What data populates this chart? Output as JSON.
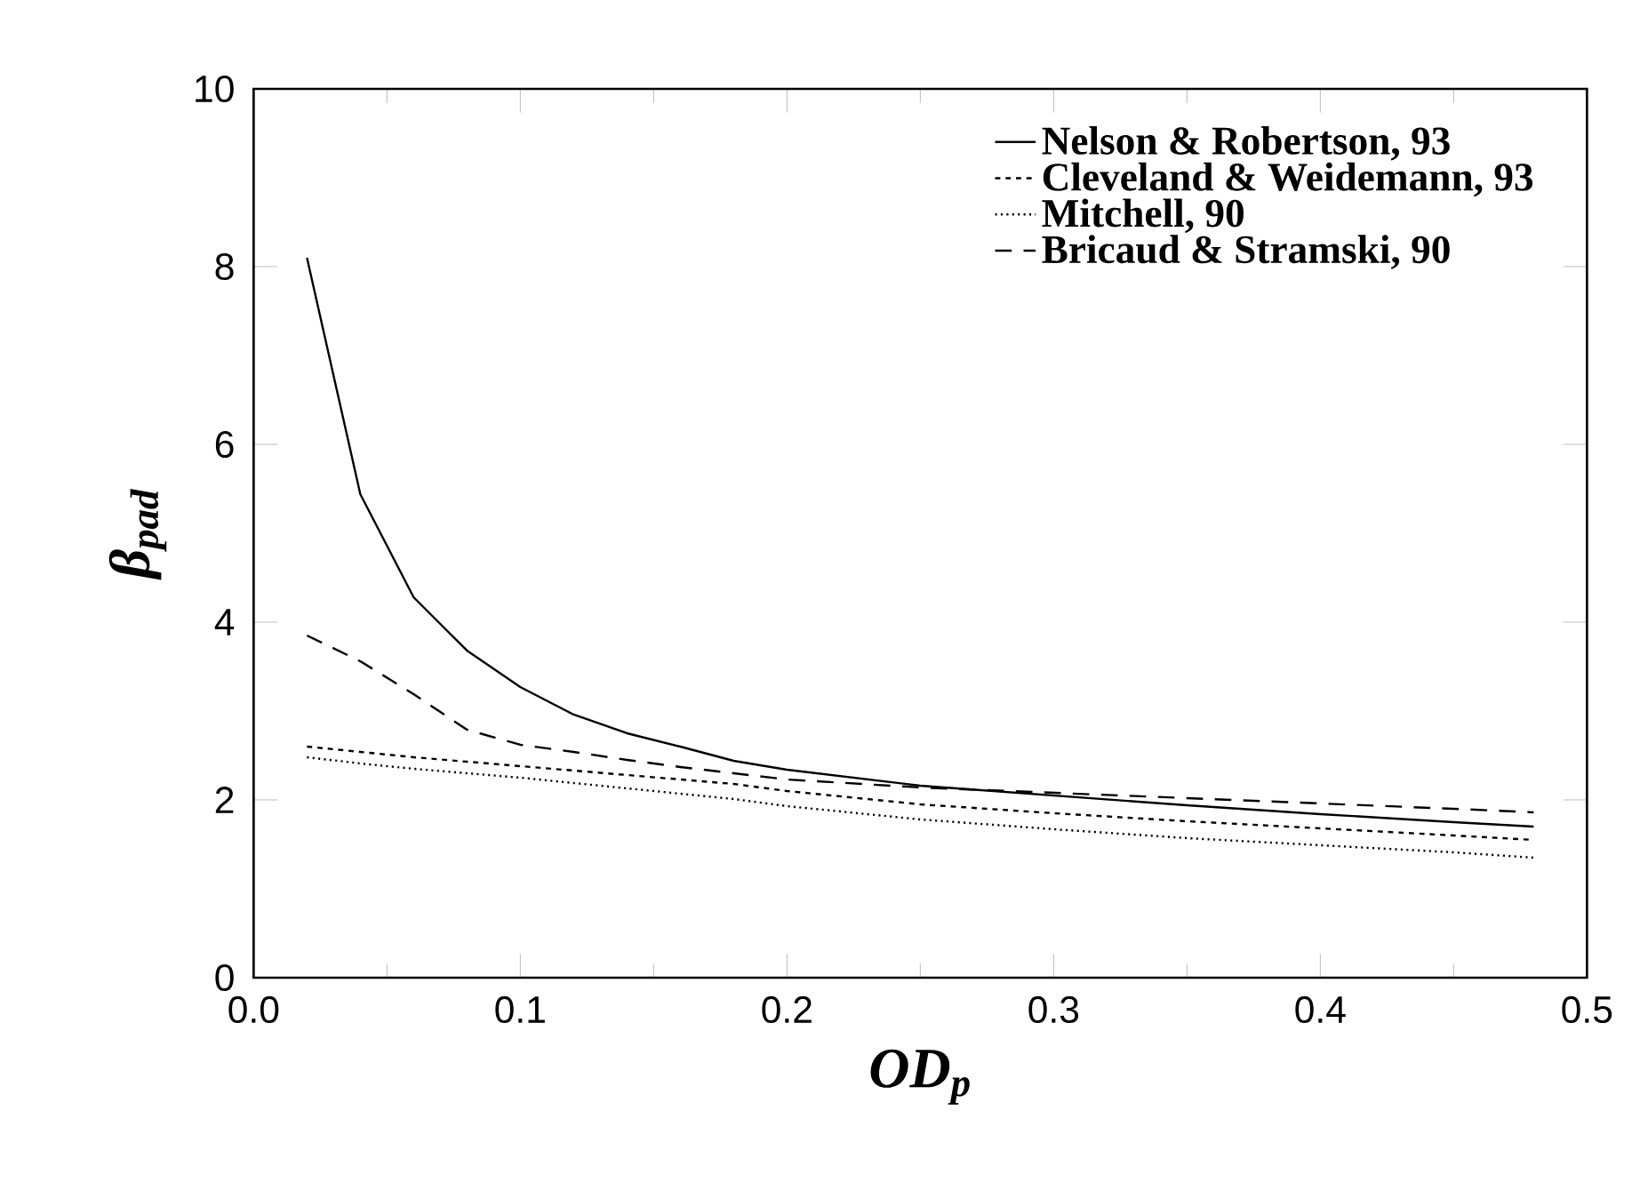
{
  "chart_data": {
    "type": "line",
    "xlabel": "OD$_{p}$",
    "ylabel": "β$_{pad}$",
    "xlim": [
      0.0,
      0.5
    ],
    "ylim": [
      0,
      10
    ],
    "xticks": [
      {
        "value": 0.0,
        "label": "0.0"
      },
      {
        "value": 0.1,
        "label": "0.1"
      },
      {
        "value": 0.2,
        "label": "0.2"
      },
      {
        "value": 0.3,
        "label": "0.3"
      },
      {
        "value": 0.4,
        "label": "0.4"
      },
      {
        "value": 0.5,
        "label": "0.5"
      }
    ],
    "yticks": [
      0,
      2,
      4,
      6,
      8,
      10
    ],
    "grid": false,
    "legend": "top right",
    "marker": "none",
    "x": [
      0.02,
      0.04,
      0.06,
      0.08,
      0.1,
      0.12,
      0.14,
      0.16,
      0.18,
      0.2,
      0.25,
      0.3,
      0.35,
      0.4,
      0.45,
      0.48
    ],
    "series": [
      {
        "name": "Nelson & Robertson, 93",
        "color": "#000000",
        "line_style": "solid",
        "values": [
          8.1,
          5.44,
          4.28,
          3.68,
          3.27,
          2.96,
          2.75,
          2.6,
          2.44,
          2.34,
          2.16,
          2.05,
          1.94,
          1.84,
          1.75,
          1.7
        ]
      },
      {
        "name": "Cleveland & Weidemann, 93",
        "color": "#000000",
        "line_style": "densely dashed",
        "values": [
          2.6,
          2.54,
          2.48,
          2.43,
          2.38,
          2.33,
          2.28,
          2.23,
          2.18,
          2.1,
          1.95,
          1.85,
          1.76,
          1.68,
          1.6,
          1.55
        ]
      },
      {
        "name": "Mitchell, 90",
        "color": "#000000",
        "line_style": "dotted",
        "values": [
          2.48,
          2.41,
          2.35,
          2.3,
          2.25,
          2.19,
          2.13,
          2.07,
          2.01,
          1.93,
          1.78,
          1.67,
          1.57,
          1.49,
          1.41,
          1.35
        ]
      },
      {
        "name": "Bricaud & Stramski, 90",
        "color": "#000000",
        "line_style": "dashed",
        "values": [
          3.85,
          3.56,
          3.19,
          2.79,
          2.62,
          2.54,
          2.45,
          2.37,
          2.3,
          2.23,
          2.14,
          2.08,
          2.02,
          1.96,
          1.9,
          1.86
        ]
      }
    ]
  }
}
